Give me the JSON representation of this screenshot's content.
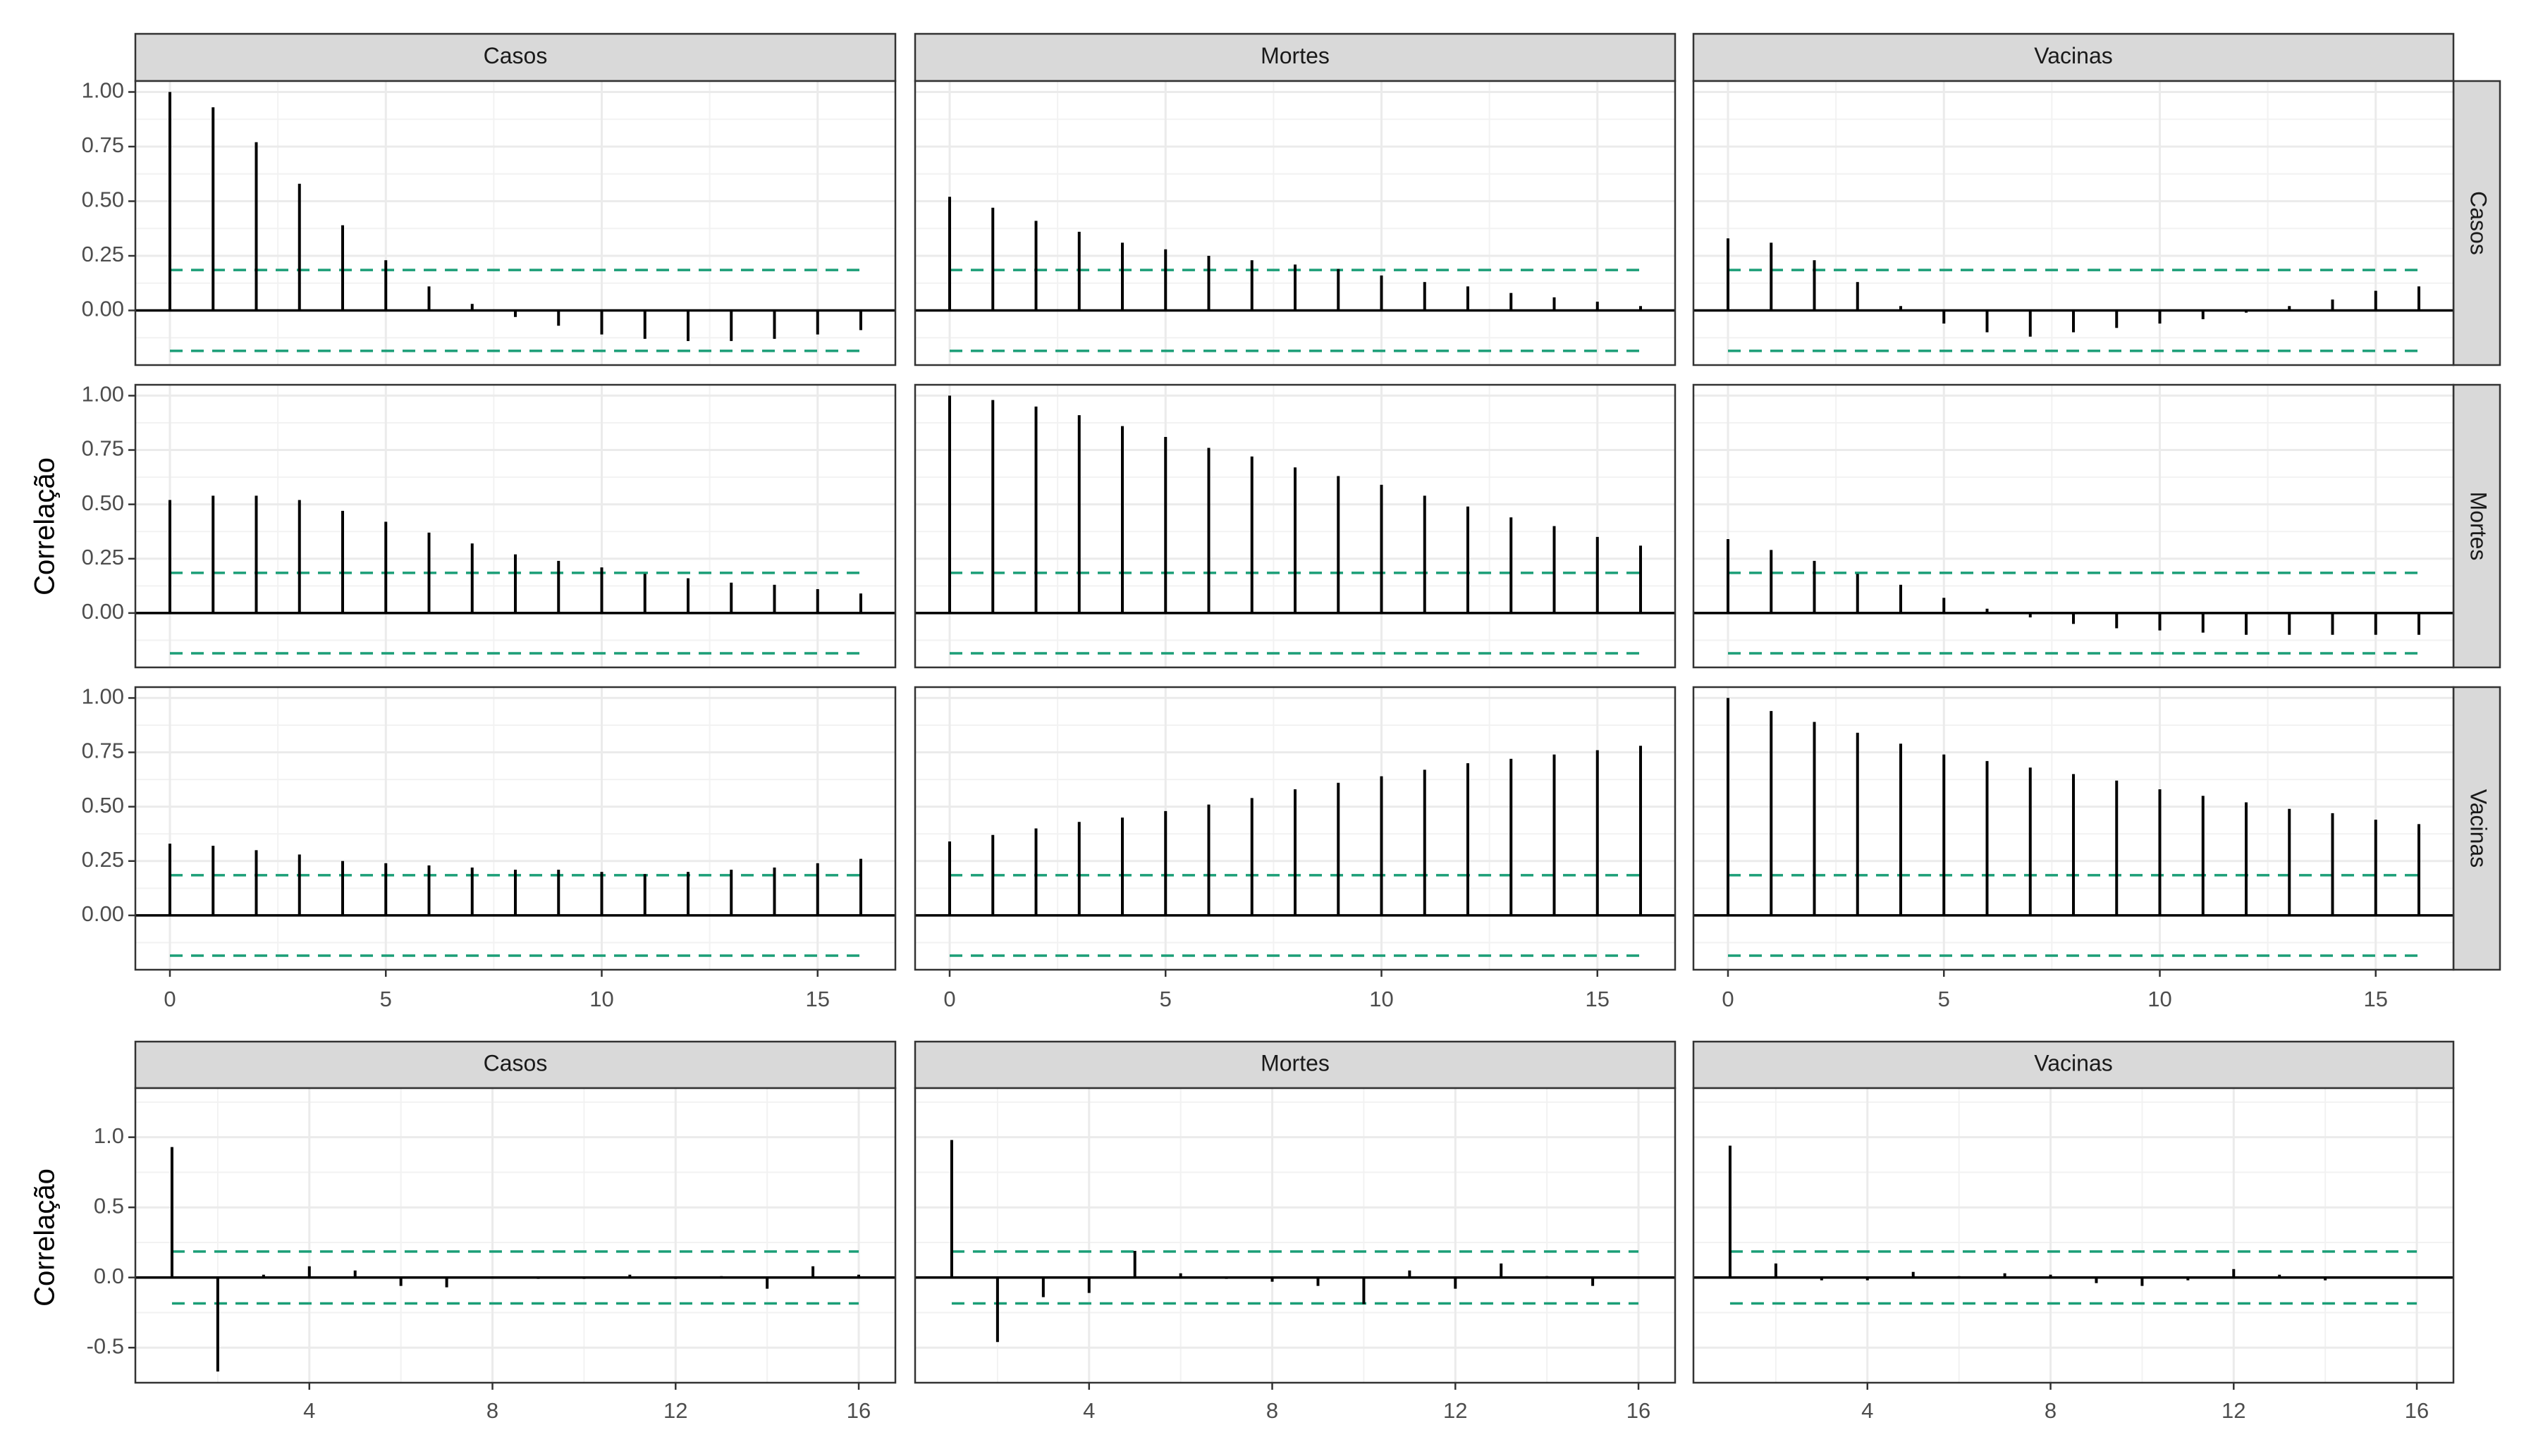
{
  "chart_data": [
    {
      "type": "bar",
      "ylabel": "Correlação",
      "facet_columns": [
        "Casos",
        "Mortes",
        "Vacinas"
      ],
      "facet_rows": [
        "Casos",
        "Mortes",
        "Vacinas"
      ],
      "x_ticks": [
        "0",
        "5",
        "10",
        "15"
      ],
      "y_ticks": [
        "1.00",
        "0.75",
        "0.50",
        "0.25",
        "0.00"
      ],
      "xlim": [
        -0.8,
        16.8
      ],
      "ylim": [
        -0.25,
        1.05
      ],
      "confidence_band": 0.185,
      "band_color": "#1B9E77",
      "grid": true,
      "panels": [
        {
          "row": "Casos",
          "col": "Casos",
          "lags": [
            0,
            1,
            2,
            3,
            4,
            5,
            6,
            7,
            8,
            9,
            10,
            11,
            12,
            13,
            14,
            15,
            16
          ],
          "values": [
            1.0,
            0.93,
            0.77,
            0.58,
            0.39,
            0.23,
            0.11,
            0.03,
            -0.03,
            -0.07,
            -0.11,
            -0.13,
            -0.14,
            -0.14,
            -0.13,
            -0.11,
            -0.09
          ]
        },
        {
          "row": "Casos",
          "col": "Mortes",
          "lags": [
            0,
            1,
            2,
            3,
            4,
            5,
            6,
            7,
            8,
            9,
            10,
            11,
            12,
            13,
            14,
            15,
            16
          ],
          "values": [
            0.52,
            0.47,
            0.41,
            0.36,
            0.31,
            0.28,
            0.25,
            0.23,
            0.21,
            0.19,
            0.16,
            0.13,
            0.11,
            0.08,
            0.06,
            0.04,
            0.02
          ]
        },
        {
          "row": "Casos",
          "col": "Vacinas",
          "lags": [
            0,
            1,
            2,
            3,
            4,
            5,
            6,
            7,
            8,
            9,
            10,
            11,
            12,
            13,
            14,
            15,
            16
          ],
          "values": [
            0.33,
            0.31,
            0.23,
            0.13,
            0.02,
            -0.06,
            -0.1,
            -0.12,
            -0.1,
            -0.08,
            -0.06,
            -0.04,
            -0.01,
            0.02,
            0.05,
            0.09,
            0.11
          ]
        },
        {
          "row": "Mortes",
          "col": "Casos",
          "lags": [
            0,
            1,
            2,
            3,
            4,
            5,
            6,
            7,
            8,
            9,
            10,
            11,
            12,
            13,
            14,
            15,
            16
          ],
          "values": [
            0.52,
            0.54,
            0.54,
            0.52,
            0.47,
            0.42,
            0.37,
            0.32,
            0.27,
            0.24,
            0.21,
            0.18,
            0.16,
            0.14,
            0.13,
            0.11,
            0.09
          ]
        },
        {
          "row": "Mortes",
          "col": "Mortes",
          "lags": [
            0,
            1,
            2,
            3,
            4,
            5,
            6,
            7,
            8,
            9,
            10,
            11,
            12,
            13,
            14,
            15,
            16
          ],
          "values": [
            1.0,
            0.98,
            0.95,
            0.91,
            0.86,
            0.81,
            0.76,
            0.72,
            0.67,
            0.63,
            0.59,
            0.54,
            0.49,
            0.44,
            0.4,
            0.35,
            0.31
          ]
        },
        {
          "row": "Mortes",
          "col": "Vacinas",
          "lags": [
            0,
            1,
            2,
            3,
            4,
            5,
            6,
            7,
            8,
            9,
            10,
            11,
            12,
            13,
            14,
            15,
            16
          ],
          "values": [
            0.34,
            0.29,
            0.24,
            0.18,
            0.13,
            0.07,
            0.02,
            -0.02,
            -0.05,
            -0.07,
            -0.08,
            -0.09,
            -0.1,
            -0.1,
            -0.1,
            -0.1,
            -0.1
          ]
        },
        {
          "row": "Vacinas",
          "col": "Casos",
          "lags": [
            0,
            1,
            2,
            3,
            4,
            5,
            6,
            7,
            8,
            9,
            10,
            11,
            12,
            13,
            14,
            15,
            16
          ],
          "values": [
            0.33,
            0.32,
            0.3,
            0.28,
            0.25,
            0.24,
            0.23,
            0.22,
            0.21,
            0.21,
            0.2,
            0.19,
            0.2,
            0.21,
            0.22,
            0.24,
            0.26
          ]
        },
        {
          "row": "Vacinas",
          "col": "Mortes",
          "lags": [
            0,
            1,
            2,
            3,
            4,
            5,
            6,
            7,
            8,
            9,
            10,
            11,
            12,
            13,
            14,
            15,
            16
          ],
          "values": [
            0.34,
            0.37,
            0.4,
            0.43,
            0.45,
            0.48,
            0.51,
            0.54,
            0.58,
            0.61,
            0.64,
            0.67,
            0.7,
            0.72,
            0.74,
            0.76,
            0.78
          ]
        },
        {
          "row": "Vacinas",
          "col": "Vacinas",
          "lags": [
            0,
            1,
            2,
            3,
            4,
            5,
            6,
            7,
            8,
            9,
            10,
            11,
            12,
            13,
            14,
            15,
            16
          ],
          "values": [
            1.0,
            0.94,
            0.89,
            0.84,
            0.79,
            0.74,
            0.71,
            0.68,
            0.65,
            0.62,
            0.58,
            0.55,
            0.52,
            0.49,
            0.47,
            0.44,
            0.42
          ]
        }
      ]
    },
    {
      "type": "bar",
      "ylabel": "Correlação",
      "facets": [
        "Casos",
        "Mortes",
        "Vacinas"
      ],
      "x_ticks": [
        "4",
        "8",
        "12",
        "16"
      ],
      "y_ticks": [
        "1.0",
        "0.5",
        "0.0",
        "-0.5"
      ],
      "xlim": [
        0.2,
        16.8
      ],
      "ylim": [
        -0.75,
        1.35
      ],
      "confidence_band": 0.185,
      "band_color": "#1B9E77",
      "grid": true,
      "panels": [
        {
          "col": "Casos",
          "lags": [
            1,
            2,
            3,
            4,
            5,
            6,
            7,
            8,
            9,
            10,
            11,
            12,
            13,
            14,
            15,
            16
          ],
          "values": [
            0.93,
            -0.67,
            0.02,
            0.08,
            0.05,
            -0.06,
            -0.07,
            0.0,
            -0.01,
            -0.01,
            0.02,
            -0.01,
            0.01,
            -0.08,
            0.08,
            0.02
          ]
        },
        {
          "col": "Mortes",
          "lags": [
            1,
            2,
            3,
            4,
            5,
            6,
            7,
            8,
            9,
            10,
            11,
            12,
            13,
            14,
            15,
            16
          ],
          "values": [
            0.98,
            -0.46,
            -0.14,
            -0.11,
            0.19,
            0.03,
            -0.01,
            -0.03,
            -0.06,
            -0.19,
            0.05,
            -0.08,
            0.1,
            0.01,
            -0.06,
            0.0
          ]
        },
        {
          "col": "Vacinas",
          "lags": [
            1,
            2,
            3,
            4,
            5,
            6,
            7,
            8,
            9,
            10,
            11,
            12,
            13,
            14,
            15,
            16
          ],
          "values": [
            0.94,
            0.1,
            -0.02,
            -0.02,
            0.04,
            0.01,
            0.03,
            0.02,
            -0.04,
            -0.06,
            -0.02,
            0.06,
            0.02,
            -0.02,
            0.0,
            0.0
          ]
        }
      ]
    }
  ]
}
